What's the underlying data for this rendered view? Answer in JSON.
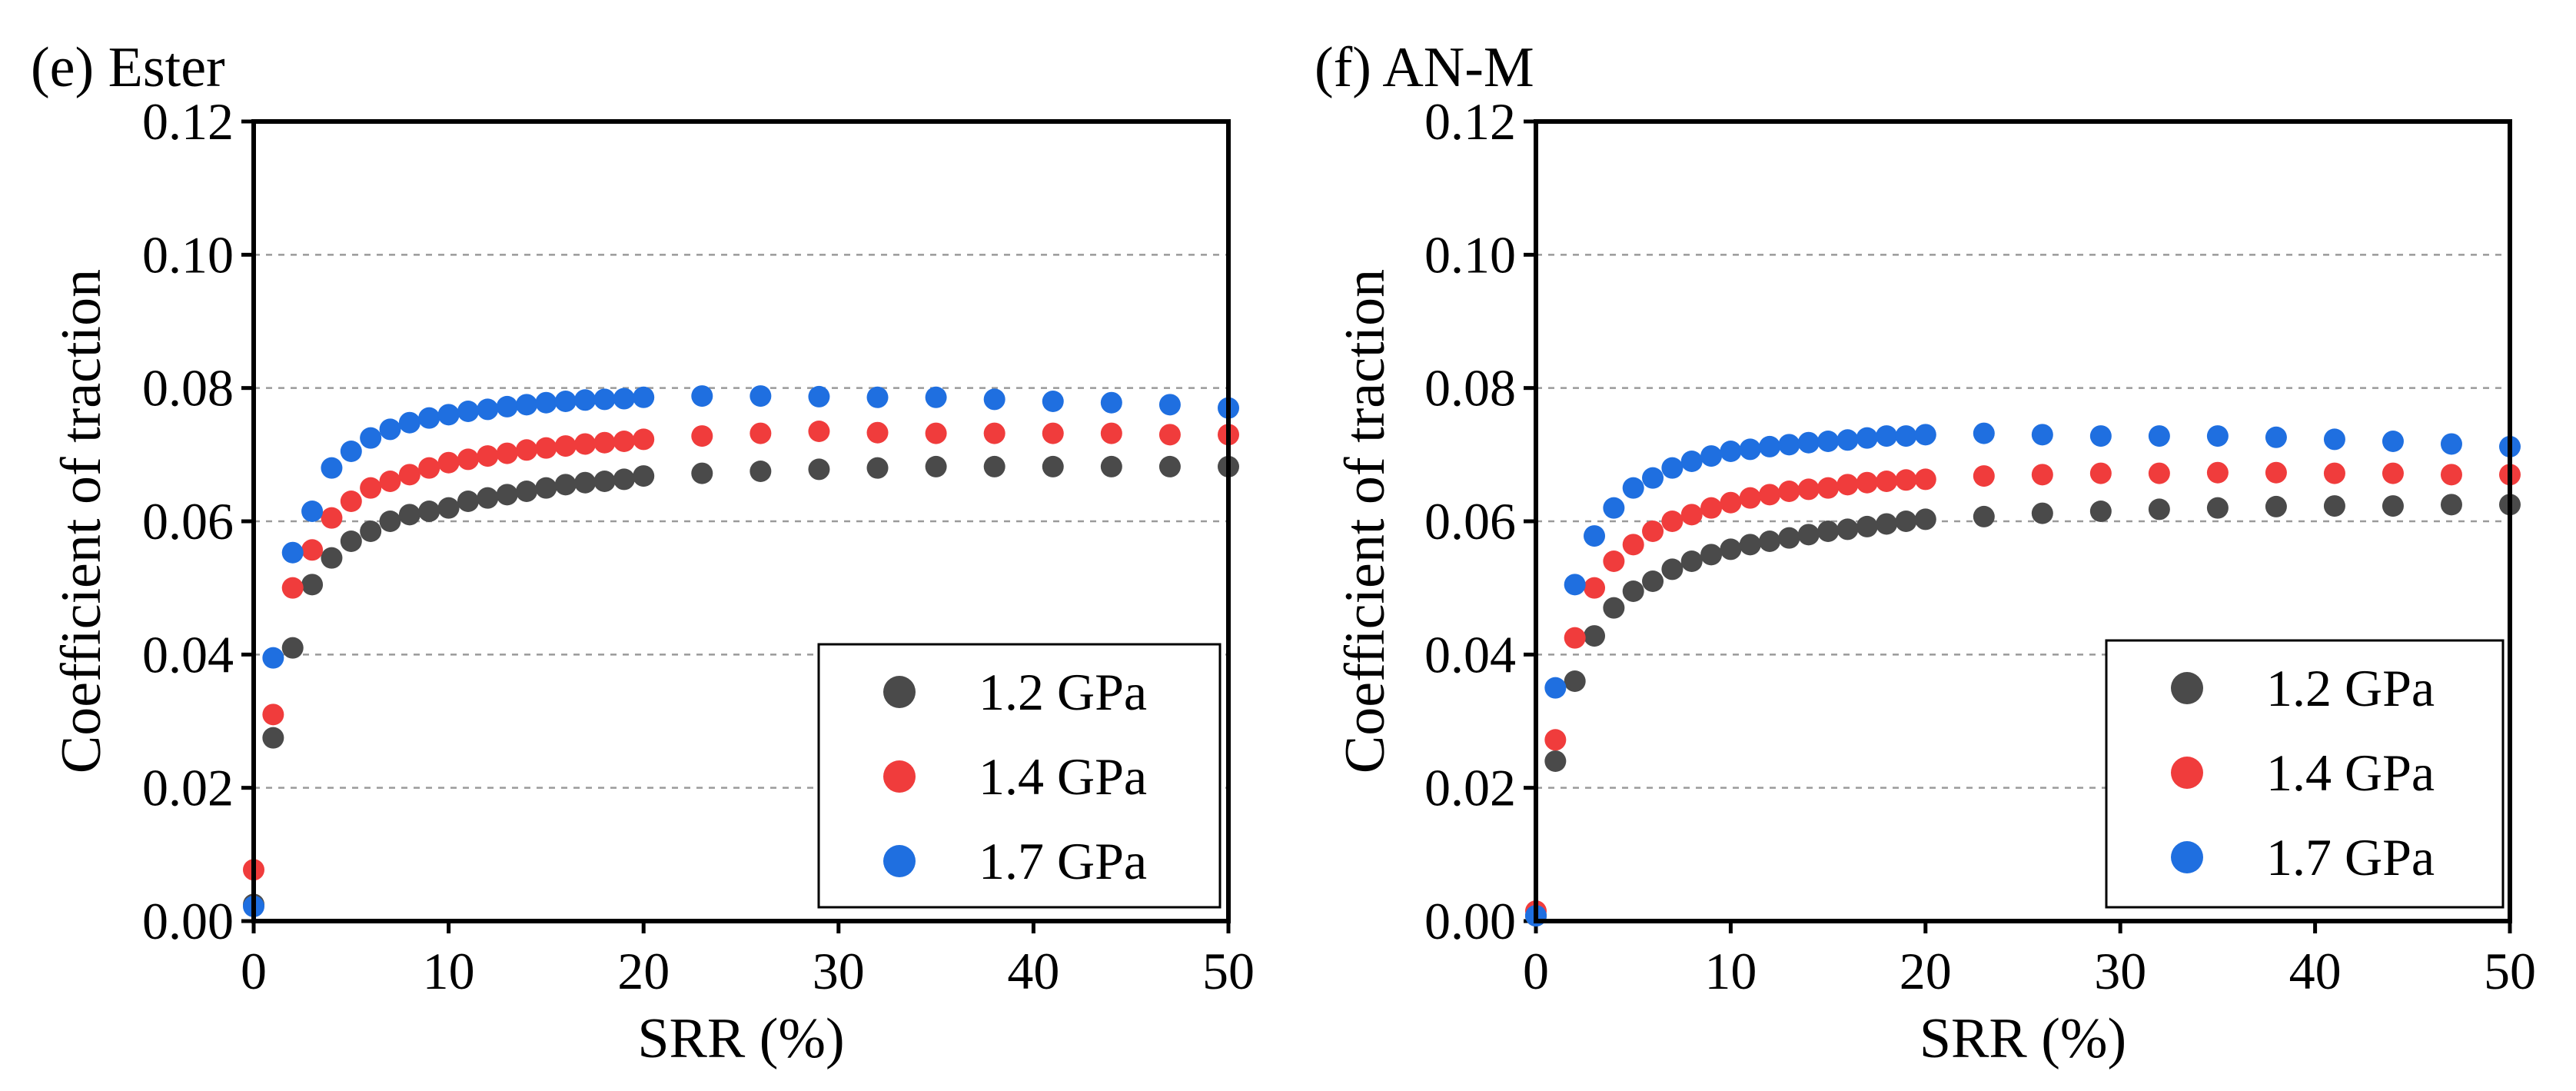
{
  "chart_data": [
    {
      "type": "scatter",
      "panel_label": "(e) Ester",
      "xlabel": "SRR (%)",
      "ylabel": "Coefficient of traction",
      "xlim": [
        0,
        50
      ],
      "ylim": [
        0,
        0.12
      ],
      "xticks": [
        0,
        10,
        20,
        30,
        40,
        50
      ],
      "yticks": [
        0.0,
        0.02,
        0.04,
        0.06,
        0.08,
        0.1,
        0.12
      ],
      "xtick_labels": [
        "0",
        "10",
        "20",
        "30",
        "40",
        "50"
      ],
      "ytick_labels": [
        "0.00",
        "0.02",
        "0.04",
        "0.06",
        "0.08",
        "0.10",
        "0.12"
      ],
      "grid": "horizontal dashed",
      "legend_position": "bottom-right",
      "series": [
        {
          "name": "1.2 GPa",
          "color": "#4a4a4a",
          "x": [
            0,
            1,
            2,
            3,
            4,
            5,
            6,
            7,
            8,
            9,
            10,
            11,
            12,
            13,
            14,
            15,
            16,
            17,
            18,
            19,
            20,
            23,
            26,
            29,
            32,
            35,
            38,
            41,
            44,
            47,
            50
          ],
          "y": [
            0.0025,
            0.0275,
            0.041,
            0.0505,
            0.0545,
            0.057,
            0.0585,
            0.06,
            0.061,
            0.0615,
            0.062,
            0.063,
            0.0635,
            0.064,
            0.0645,
            0.065,
            0.0655,
            0.0658,
            0.066,
            0.0663,
            0.0668,
            0.0672,
            0.0675,
            0.0678,
            0.068,
            0.0682,
            0.0682,
            0.0682,
            0.0682,
            0.0682,
            0.0682
          ]
        },
        {
          "name": "1.4 GPa",
          "color": "#f03c3c",
          "x": [
            0,
            1,
            2,
            3,
            4,
            5,
            6,
            7,
            8,
            9,
            10,
            11,
            12,
            13,
            14,
            15,
            16,
            17,
            18,
            19,
            20,
            23,
            26,
            29,
            32,
            35,
            38,
            41,
            44,
            47,
            50
          ],
          "y": [
            0.0077,
            0.031,
            0.05,
            0.0557,
            0.0605,
            0.063,
            0.065,
            0.066,
            0.067,
            0.068,
            0.0688,
            0.0693,
            0.0698,
            0.0702,
            0.0707,
            0.071,
            0.0713,
            0.0716,
            0.0718,
            0.072,
            0.0723,
            0.0728,
            0.0732,
            0.0735,
            0.0733,
            0.0732,
            0.0732,
            0.0732,
            0.0732,
            0.073,
            0.073
          ]
        },
        {
          "name": "1.7 GPa",
          "color": "#1f6fe0",
          "x": [
            0,
            1,
            2,
            3,
            4,
            5,
            6,
            7,
            8,
            9,
            10,
            11,
            12,
            13,
            14,
            15,
            16,
            17,
            18,
            19,
            20,
            23,
            26,
            29,
            32,
            35,
            38,
            41,
            44,
            47,
            50
          ],
          "y": [
            0.0022,
            0.0395,
            0.0553,
            0.0615,
            0.068,
            0.0705,
            0.0725,
            0.0738,
            0.0748,
            0.0755,
            0.076,
            0.0765,
            0.0768,
            0.0772,
            0.0775,
            0.0778,
            0.078,
            0.0782,
            0.0783,
            0.0784,
            0.0786,
            0.0788,
            0.0788,
            0.0787,
            0.0786,
            0.0786,
            0.0783,
            0.078,
            0.0778,
            0.0775,
            0.077
          ]
        }
      ]
    },
    {
      "type": "scatter",
      "panel_label": "(f) AN-M",
      "xlabel": "SRR (%)",
      "ylabel": "Coefficient of traction",
      "xlim": [
        0,
        50
      ],
      "ylim": [
        0,
        0.12
      ],
      "xticks": [
        0,
        10,
        20,
        30,
        40,
        50
      ],
      "yticks": [
        0.0,
        0.02,
        0.04,
        0.06,
        0.08,
        0.1,
        0.12
      ],
      "xtick_labels": [
        "0",
        "10",
        "20",
        "30",
        "40",
        "50"
      ],
      "ytick_labels": [
        "0.00",
        "0.02",
        "0.04",
        "0.06",
        "0.08",
        "0.10",
        "0.12"
      ],
      "grid": "horizontal dashed",
      "legend_position": "bottom-right",
      "series": [
        {
          "name": "1.2 GPa",
          "color": "#4a4a4a",
          "x": [
            0,
            1,
            2,
            3,
            4,
            5,
            6,
            7,
            8,
            9,
            10,
            11,
            12,
            13,
            14,
            15,
            16,
            17,
            18,
            19,
            20,
            23,
            26,
            29,
            32,
            35,
            38,
            41,
            44,
            47,
            50
          ],
          "y": [
            0.0008,
            0.024,
            0.036,
            0.0428,
            0.047,
            0.0495,
            0.051,
            0.0528,
            0.054,
            0.055,
            0.0558,
            0.0565,
            0.057,
            0.0575,
            0.058,
            0.0585,
            0.0588,
            0.0592,
            0.0596,
            0.06,
            0.0603,
            0.0607,
            0.0612,
            0.0615,
            0.0618,
            0.062,
            0.0622,
            0.0623,
            0.0623,
            0.0625,
            0.0625
          ]
        },
        {
          "name": "1.4 GPa",
          "color": "#f03c3c",
          "x": [
            0,
            1,
            2,
            3,
            4,
            5,
            6,
            7,
            8,
            9,
            10,
            11,
            12,
            13,
            14,
            15,
            16,
            17,
            18,
            19,
            20,
            23,
            26,
            29,
            32,
            35,
            38,
            41,
            44,
            47,
            50
          ],
          "y": [
            0.0015,
            0.0272,
            0.0425,
            0.05,
            0.054,
            0.0565,
            0.0585,
            0.06,
            0.061,
            0.062,
            0.0628,
            0.0635,
            0.064,
            0.0645,
            0.0648,
            0.065,
            0.0655,
            0.0658,
            0.066,
            0.0662,
            0.0663,
            0.0668,
            0.067,
            0.0672,
            0.0672,
            0.0673,
            0.0673,
            0.0672,
            0.0672,
            0.067,
            0.067
          ]
        },
        {
          "name": "1.7 GPa",
          "color": "#1f6fe0",
          "x": [
            0,
            1,
            2,
            3,
            4,
            5,
            6,
            7,
            8,
            9,
            10,
            11,
            12,
            13,
            14,
            15,
            16,
            17,
            18,
            19,
            20,
            23,
            26,
            29,
            32,
            35,
            38,
            41,
            44,
            47,
            50
          ],
          "y": [
            0.0008,
            0.035,
            0.0505,
            0.0578,
            0.062,
            0.065,
            0.0665,
            0.068,
            0.069,
            0.0698,
            0.0705,
            0.0708,
            0.0712,
            0.0715,
            0.0718,
            0.072,
            0.0722,
            0.0725,
            0.0728,
            0.0728,
            0.073,
            0.0732,
            0.073,
            0.0728,
            0.0728,
            0.0728,
            0.0726,
            0.0723,
            0.072,
            0.0716,
            0.0712
          ]
        }
      ]
    }
  ]
}
